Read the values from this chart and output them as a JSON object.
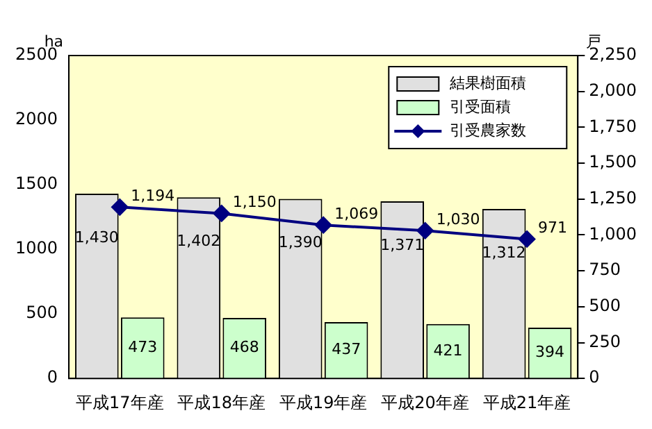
{
  "chart_data": {
    "type": "bar",
    "ylabel": "ha",
    "y2label": "戸",
    "categories": [
      "平成17年産",
      "平成18年産",
      "平成19年産",
      "平成20年産",
      "平成21年産"
    ],
    "series": [
      {
        "name": "結果樹面積",
        "color": "#e0e0e0",
        "values": [
          1430,
          1402,
          1390,
          1371,
          1312
        ],
        "value_labels": [
          "1,430",
          "1,402",
          "1,390",
          "1,371",
          "1,312"
        ]
      },
      {
        "name": "引受面積",
        "color": "#ccffcc",
        "values": [
          473,
          468,
          437,
          421,
          394
        ]
      },
      {
        "name": "引受農家数",
        "type": "line",
        "axis": "y2",
        "color": "#000080",
        "values": [
          1194,
          1150,
          1069,
          1030,
          971
        ],
        "value_labels": [
          "1,194",
          "1,150",
          "1,069",
          "1,030",
          "971"
        ]
      }
    ],
    "ylim": [
      0,
      2500
    ],
    "yticks": [
      0,
      500,
      1000,
      1500,
      2000,
      2500
    ],
    "y2lim": [
      0,
      2250
    ],
    "y2ticks": [
      {
        "value": 0,
        "label": "0"
      },
      {
        "value": 250,
        "label": "250"
      },
      {
        "value": 500,
        "label": "500"
      },
      {
        "value": 750,
        "label": "750"
      },
      {
        "value": 1000,
        "label": "1,000"
      },
      {
        "value": 1250,
        "label": "1,250"
      },
      {
        "value": 1500,
        "label": "1,500"
      },
      {
        "value": 1750,
        "label": "1,750"
      },
      {
        "value": 2000,
        "label": "2,000"
      },
      {
        "value": 2250,
        "label": "2,250"
      }
    ],
    "data_labels": true,
    "grid": false,
    "legend": "top right",
    "marker": "diamond",
    "line_style": "solid"
  }
}
